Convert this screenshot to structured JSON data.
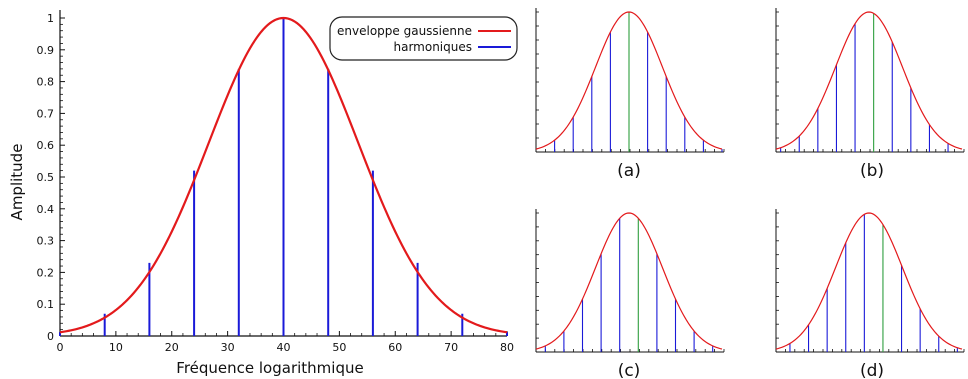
{
  "chart_data": [
    {
      "type": "line",
      "xlabel": "Fréquence logarithmique",
      "ylabel": "Amplitude",
      "xlim": [
        0,
        80
      ],
      "ylim": [
        0,
        1
      ],
      "xticks": [
        "0",
        "10",
        "20",
        "30",
        "40",
        "50",
        "60",
        "70",
        "80"
      ],
      "yticks": [
        "0",
        "0.1",
        "0.2",
        "0.3",
        "0.4",
        "0.5",
        "0.6",
        "0.7",
        "0.8",
        "0.9",
        "1"
      ],
      "envelope": {
        "name": "enveloppe gaussienne",
        "color": "#e31a1c",
        "center": 40,
        "sigma": 13.4
      },
      "harmonics": {
        "name": "harmoniques",
        "color": "#1a1ad8",
        "x": [
          0,
          8,
          16,
          24,
          32,
          40,
          48,
          56,
          64,
          72,
          80
        ],
        "values": [
          0.012,
          0.07,
          0.23,
          0.52,
          0.84,
          1.0,
          0.84,
          0.52,
          0.23,
          0.07,
          0.012
        ]
      },
      "legend_position": "top-right",
      "grid": false
    },
    {
      "type": "line",
      "label": "(a)",
      "envelope_color": "#e31a1c",
      "harmonic_color": "#1a1ad8",
      "highlight_color": "#2e9e3e",
      "center": 0.5,
      "highlight_index": 5,
      "harmonics_x": [
        0.0,
        0.1,
        0.2,
        0.3,
        0.4,
        0.5,
        0.6,
        0.7,
        0.8,
        0.9,
        1.0
      ]
    },
    {
      "type": "line",
      "label": "(b)",
      "envelope_color": "#e31a1c",
      "harmonic_color": "#1a1ad8",
      "highlight_color": "#2e9e3e",
      "center": 0.5,
      "highlight_index": 5,
      "harmonics_x": [
        0.0,
        0.1,
        0.2,
        0.3,
        0.4,
        0.5,
        0.6,
        0.7,
        0.8,
        0.9,
        1.0
      ]
    },
    {
      "type": "line",
      "label": "(c)",
      "envelope_color": "#e31a1c",
      "harmonic_color": "#1a1ad8",
      "highlight_color": "#2e9e3e",
      "center": 0.5,
      "highlight_index": 5,
      "harmonics_x": [
        0.0,
        0.1,
        0.2,
        0.3,
        0.4,
        0.5,
        0.6,
        0.7,
        0.8,
        0.9,
        1.0
      ]
    },
    {
      "type": "line",
      "label": "(d)",
      "envelope_color": "#e31a1c",
      "harmonic_color": "#1a1ad8",
      "highlight_color": "#2e9e3e",
      "center": 0.5,
      "highlight_index": 5,
      "harmonics_x": [
        0.0,
        0.1,
        0.2,
        0.3,
        0.4,
        0.5,
        0.6,
        0.7,
        0.8,
        0.9,
        1.0
      ]
    }
  ]
}
